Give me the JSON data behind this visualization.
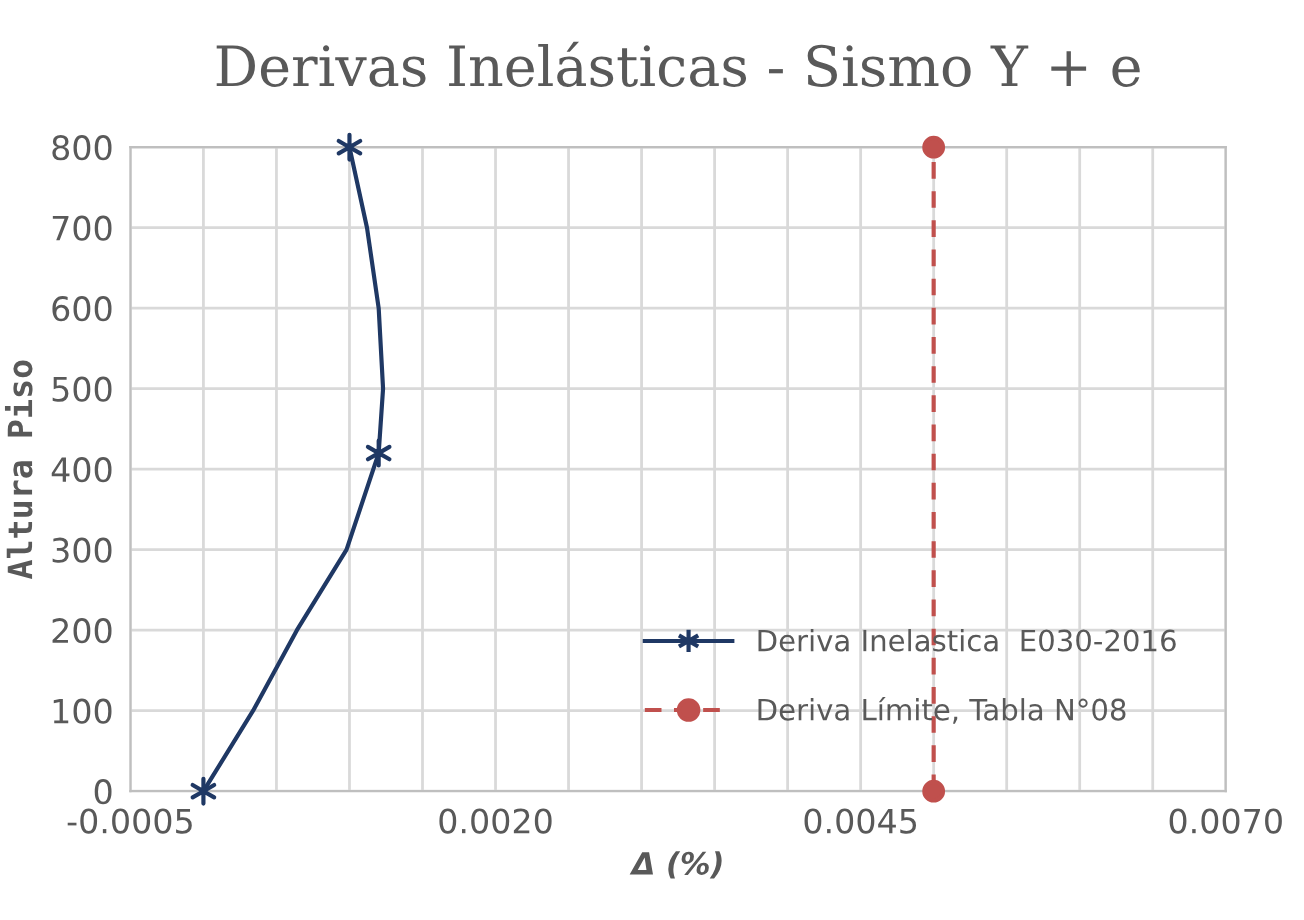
{
  "chart_data": {
    "type": "line",
    "title": "Derivas Inelásticas - Sismo Y + e",
    "xlabel": "Δ (%)",
    "ylabel": "Altura Piso",
    "series": [
      {
        "type": "line",
        "color": "#1f3864",
        "x": [
          0.0,
          0.00034,
          0.00064,
          0.00098,
          0.0012,
          0.00123,
          0.0012,
          0.00112,
          0.001
        ],
        "values": [
          0,
          100,
          200,
          300,
          420,
          500,
          600,
          700,
          800
        ],
        "marker": "none",
        "line_style": "solid"
      },
      {
        "type": "scatter",
        "name": "Deriva Inelastica  E030-2016",
        "color": "#1f3864",
        "x": [
          0.0,
          0.0012,
          0.001
        ],
        "values": [
          0,
          420,
          800
        ],
        "marker": "cross"
      },
      {
        "name": "Deriva Límite, Tabla N°08",
        "color": "#c0504d",
        "x": [
          0.005,
          0.005
        ],
        "values": [
          0,
          800
        ],
        "marker": "circle",
        "line_style": "dashed"
      }
    ],
    "xlim": [
      -0.0005,
      0.007
    ],
    "xticks": [
      {
        "value": -0.0005,
        "label": "-0.0005"
      },
      {
        "value": 0.0,
        "label": null
      },
      {
        "value": 0.0005,
        "label": null
      },
      {
        "value": 0.001,
        "label": null
      },
      {
        "value": 0.0015,
        "label": null
      },
      {
        "value": 0.002,
        "label": "0.0020"
      },
      {
        "value": 0.0025,
        "label": null
      },
      {
        "value": 0.003,
        "label": null
      },
      {
        "value": 0.0035,
        "label": null
      },
      {
        "value": 0.004,
        "label": null
      },
      {
        "value": 0.0045,
        "label": "0.0045"
      },
      {
        "value": 0.005,
        "label": null
      },
      {
        "value": 0.0055,
        "label": null
      },
      {
        "value": 0.006,
        "label": null
      },
      {
        "value": 0.0065,
        "label": null
      },
      {
        "value": 0.007,
        "label": "0.0070"
      }
    ],
    "ylim": [
      0,
      800
    ],
    "yticks": [
      0,
      100,
      200,
      300,
      400,
      500,
      600,
      700,
      800
    ],
    "grid": true,
    "legend": "bottom right"
  }
}
